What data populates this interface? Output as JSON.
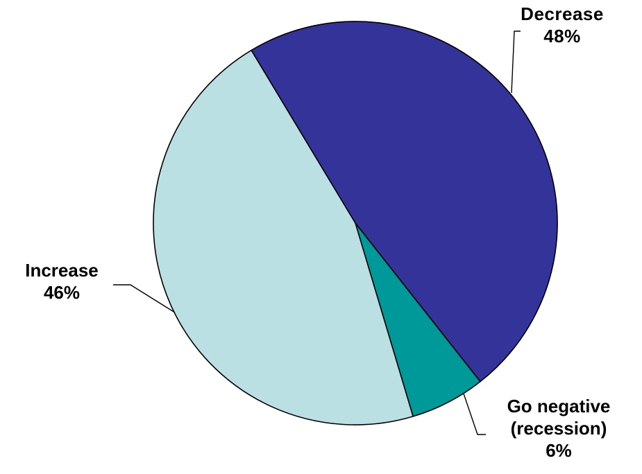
{
  "chart_data": {
    "type": "pie",
    "slices": [
      {
        "name": "Decrease",
        "value": 48,
        "label": "48%",
        "color": "#333399"
      },
      {
        "name": "Go negative (recession)",
        "line1": "Go negative",
        "line2": "(recession)",
        "value": 6,
        "label": "6%",
        "color": "#009999"
      },
      {
        "name": "Increase",
        "value": 46,
        "label": "46%",
        "color": "#BBE0E3"
      }
    ]
  }
}
